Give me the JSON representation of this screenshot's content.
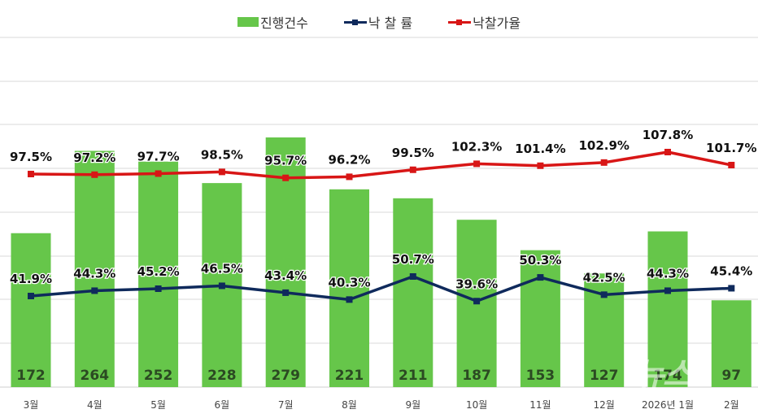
{
  "legend": {
    "bar_label": "진행건수",
    "rate_label": "낙 찰 률",
    "price_label": "낙찰가율"
  },
  "colors": {
    "bar": "#66c64a",
    "rate_line": "#0f2a5c",
    "price_line": "#d81616",
    "grid": "#d9d9d9",
    "bar_value_text": "#2b4a22"
  },
  "watermark": "뉴스1",
  "chart_data": {
    "type": "bar",
    "title": "",
    "xlabel": "",
    "ylabel": "",
    "categories": [
      "3월",
      "4월",
      "5월",
      "6월",
      "7월",
      "8월",
      "9월",
      "10월",
      "11월",
      "12월",
      "2026년 1월",
      "2월"
    ],
    "series": [
      {
        "name": "진행건수",
        "type": "bar",
        "values": [
          172,
          264,
          252,
          228,
          279,
          221,
          211,
          187,
          153,
          127,
          174,
          97
        ],
        "labels": [
          "172",
          "264",
          "252",
          "228",
          "279",
          "221",
          "211",
          "187",
          "153",
          "127",
          "174",
          "97"
        ]
      },
      {
        "name": "낙 찰 률",
        "type": "line",
        "values": [
          41.9,
          44.3,
          45.2,
          46.5,
          43.4,
          40.3,
          50.7,
          39.6,
          50.3,
          42.5,
          44.3,
          45.4
        ],
        "labels": [
          "41.9%",
          "44.3%",
          "45.2%",
          "46.5%",
          "43.4%",
          "40.3%",
          "50.7%",
          "39.6%",
          "50.3%",
          "42.5%",
          "44.3%",
          "45.4%"
        ]
      },
      {
        "name": "낙찰가율",
        "type": "line",
        "values": [
          97.5,
          97.2,
          97.7,
          98.5,
          95.7,
          96.2,
          99.5,
          102.3,
          101.4,
          102.9,
          107.8,
          101.7
        ],
        "labels": [
          "97.5%",
          "97.2%",
          "97.7%",
          "98.5%",
          "95.7%",
          "96.2%",
          "99.5%",
          "102.3%",
          "101.4%",
          "102.9%",
          "107.8%",
          "101.7%"
        ]
      }
    ],
    "grid": true,
    "legend_position": "top",
    "axes_visible": false
  }
}
